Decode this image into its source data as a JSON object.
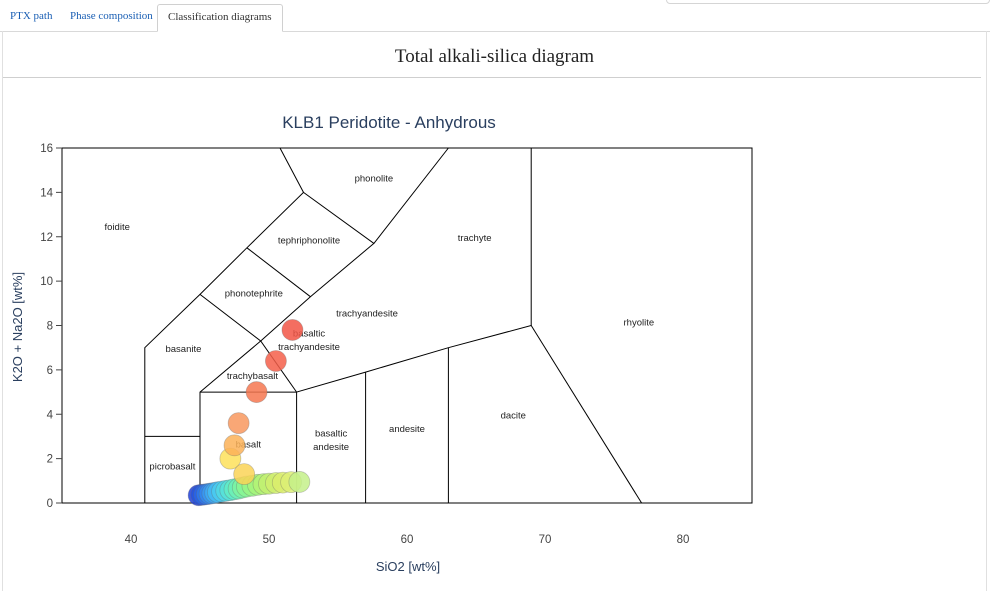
{
  "tabs": [
    {
      "label": "PTX path",
      "active": false
    },
    {
      "label": "Phase composition",
      "active": false
    },
    {
      "label": "Classification diagrams",
      "active": true
    }
  ],
  "panel_title": "Total alkali-silica diagram",
  "chart_data": {
    "type": "scatter",
    "title": "KLB1 Peridotite - Anhydrous",
    "xlabel": "SiO2 [wt%]",
    "ylabel": "K2O + Na2O [wt%]",
    "xlim": [
      35,
      85
    ],
    "ylim": [
      0,
      16
    ],
    "xticks": [
      40,
      50,
      60,
      70,
      80
    ],
    "yticks": [
      0,
      2,
      4,
      6,
      8,
      10,
      12,
      14,
      16
    ],
    "grid": false,
    "fields": [
      {
        "name": "foidite",
        "x": 39,
        "y": 12.3
      },
      {
        "name": "phonolite",
        "x": 57.6,
        "y": 14.5
      },
      {
        "name": "tephriphonolite",
        "x": 52.9,
        "y": 11.7
      },
      {
        "name": "trachyte",
        "x": 64.9,
        "y": 11.8
      },
      {
        "name": "phonotephrite",
        "x": 48.9,
        "y": 9.3
      },
      {
        "name": "trachyandesite",
        "x": 57.1,
        "y": 8.4
      },
      {
        "name": "rhyolite",
        "x": 76.8,
        "y": 8.0
      },
      {
        "name": "basanite",
        "x": 43.8,
        "y": 6.8
      },
      {
        "name": "basaltic",
        "x": 52.9,
        "y": 7.5
      },
      {
        "name": "trachyandesite",
        "x": 52.9,
        "y": 6.9
      },
      {
        "name": "trachybasalt",
        "x": 48.8,
        "y": 5.6
      },
      {
        "name": "basaltic",
        "x": 54.5,
        "y": 3.0
      },
      {
        "name": "andesite",
        "x": 54.5,
        "y": 2.4
      },
      {
        "name": "andesite",
        "x": 60.0,
        "y": 3.2
      },
      {
        "name": "basalt",
        "x": 48.5,
        "y": 2.5
      },
      {
        "name": "dacite",
        "x": 67.7,
        "y": 3.8
      },
      {
        "name": "picrobasalt",
        "x": 43.0,
        "y": 1.5
      }
    ],
    "boundaries": [
      [
        [
          41,
          0
        ],
        [
          41,
          7
        ],
        [
          45,
          9.4
        ],
        [
          48.4,
          11.5
        ],
        [
          52.5,
          14
        ],
        [
          57.6,
          11.7
        ],
        [
          63,
          16
        ]
      ],
      [
        [
          41,
          3
        ],
        [
          45,
          3
        ]
      ],
      [
        [
          45,
          0
        ],
        [
          45,
          5
        ],
        [
          49.4,
          7.3
        ],
        [
          53,
          9.3
        ],
        [
          57.6,
          11.7
        ]
      ],
      [
        [
          45,
          5
        ],
        [
          52,
          5
        ],
        [
          52,
          0
        ]
      ],
      [
        [
          45,
          9.4
        ],
        [
          49.4,
          7.3
        ],
        [
          52,
          5
        ],
        [
          57,
          5.9
        ],
        [
          63,
          7
        ],
        [
          69,
          8
        ],
        [
          69,
          16
        ]
      ],
      [
        [
          48.4,
          11.5
        ],
        [
          53,
          9.3
        ]
      ],
      [
        [
          52.5,
          14
        ],
        [
          50.8,
          16
        ]
      ],
      [
        [
          57,
          0
        ],
        [
          57,
          5.9
        ]
      ],
      [
        [
          63,
          0
        ],
        [
          63,
          7
        ]
      ],
      [
        [
          69,
          8
        ],
        [
          77,
          0
        ]
      ]
    ],
    "series": [
      {
        "x": [
          44.9,
          45.1,
          45.3,
          45.5,
          45.7,
          45.9,
          46.1,
          46.3,
          46.6,
          46.9,
          47.2,
          47.5,
          47.8,
          48.1,
          48.4,
          48.8,
          49.2,
          49.6,
          50.0,
          50.5,
          51.0,
          51.6,
          52.2,
          47.2,
          47.5,
          47.8,
          48.2,
          49.1,
          50.5,
          51.7
        ],
        "y": [
          0.35,
          0.37,
          0.38,
          0.4,
          0.42,
          0.44,
          0.46,
          0.49,
          0.52,
          0.55,
          0.58,
          0.62,
          0.65,
          0.7,
          0.74,
          0.78,
          0.82,
          0.85,
          0.87,
          0.9,
          0.92,
          0.94,
          0.95,
          2.0,
          2.6,
          3.6,
          1.3,
          5.0,
          6.4,
          7.8
        ],
        "colors": [
          "#1f3fd8",
          "#2353e0",
          "#2a66e6",
          "#2f78ea",
          "#3389ee",
          "#389af2",
          "#3eaaf4",
          "#44bbf2",
          "#4acbee",
          "#50d8e4",
          "#58e3d6",
          "#62ecc6",
          "#6ef0b4",
          "#7cf3a2",
          "#8af593",
          "#98f586",
          "#a6f47c",
          "#b4f276",
          "#c2f071",
          "#d0ee6e",
          "#daed6c",
          "#dcee74",
          "#c4f08a",
          "#fde05a",
          "#fbb258",
          "#f8985e",
          "#fad457",
          "#f67750",
          "#f55f4a",
          "#f25545"
        ]
      }
    ]
  }
}
